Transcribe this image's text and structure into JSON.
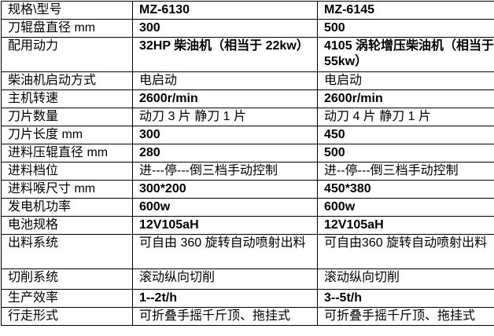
{
  "table": {
    "header": [
      "规格\\型号",
      "MZ-6130",
      "MZ-6145"
    ],
    "rows": [
      [
        "刀辊盘直径 mm",
        "300",
        "500"
      ],
      [
        "配用动力",
        "32HP 柴油机（相当于 22kw）",
        "4105 涡轮增压柴油机（相当于 55kw）"
      ],
      [
        "柴油机启动方式",
        "电启动",
        "电启动"
      ],
      [
        "主机转速",
        "2600r/min",
        "2600r/min"
      ],
      [
        "刀片数量",
        "动刀 3 片  静刀 1 片",
        "动刀 4 片  静刀 1 片"
      ],
      [
        "刀片长度 mm",
        "300",
        "450"
      ],
      [
        "进料压辊直径 mm",
        "280",
        "500"
      ],
      [
        "进料档位",
        "进---停---倒三档手动控制",
        "进--停---倒三档手动控制"
      ],
      [
        "进料喉尺寸 mm",
        "300*200",
        "450*380"
      ],
      [
        "发电机功率",
        "600w",
        "600w"
      ],
      [
        "电池规格",
        "12V105aH",
        "12V105aH"
      ],
      [
        "出料系统",
        "可自由 360 旋转自动喷射出料",
        "可自由360 旋转自动喷射出料"
      ],
      [
        "切削系统",
        "滚动纵向切削",
        "滚动纵向切削"
      ],
      [
        "生产效率",
        "1--2t/h",
        "3--5t/h"
      ],
      [
        "行走形式",
        "可折叠手摇千斤顶、拖挂式",
        "可折叠手摇千斤顶、拖挂式"
      ]
    ]
  }
}
